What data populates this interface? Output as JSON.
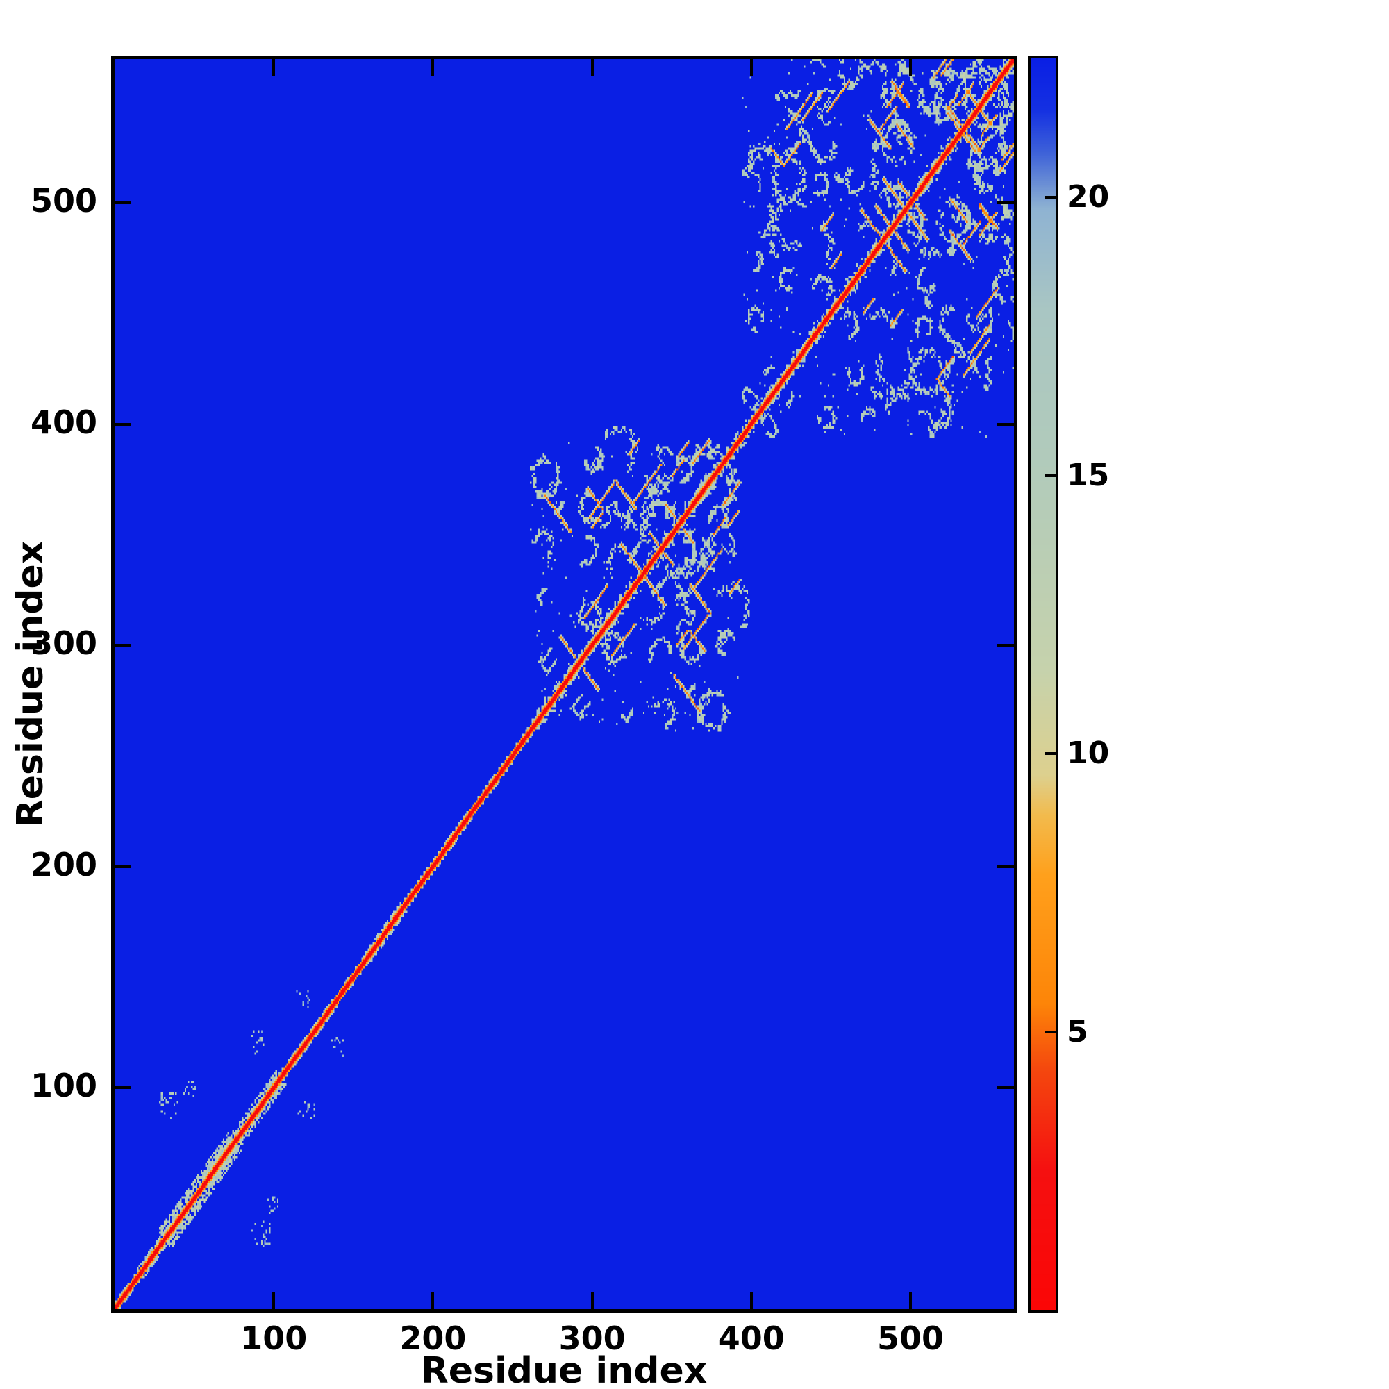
{
  "figure": {
    "background": "#ffffff",
    "frame_color": "#000000"
  },
  "chart_data": {
    "type": "heatmap",
    "title": "",
    "xlabel": "Residue index",
    "ylabel": "Residue index",
    "x_ticks": [
      100,
      200,
      300,
      400,
      500
    ],
    "y_ticks": [
      100,
      200,
      300,
      400,
      500
    ],
    "n_residues": 565,
    "value_range": [
      0,
      22.5
    ],
    "background_value": 22.5,
    "colorbar_ticks": [
      5,
      10,
      15,
      20
    ],
    "legend_position": "right",
    "grid": false,
    "value_meaning": "residue-residue distance, red = near (diagonal), blue = far",
    "colormap_stops": [
      [
        0.0,
        "#fb0606"
      ],
      [
        2.5,
        "#f51010"
      ],
      [
        4.3,
        "#f4470e"
      ],
      [
        5.5,
        "#fd8508"
      ],
      [
        7.8,
        "#ffa01c"
      ],
      [
        8.9,
        "#f2bb4e"
      ],
      [
        9.6,
        "#ddd08e"
      ],
      [
        11.5,
        "#c6d2ac"
      ],
      [
        15.0,
        "#b2cbba"
      ],
      [
        18.0,
        "#a9c6c3"
      ],
      [
        19.8,
        "#8fb3d2"
      ],
      [
        20.8,
        "#3f63d8"
      ],
      [
        21.6,
        "#1430e2"
      ],
      [
        22.5,
        "#0a1fe4"
      ]
    ],
    "diagonal": {
      "core_value": 0.4,
      "near_value": 2.2,
      "second_value": 7.5,
      "fringe_value": 16,
      "seed": 99,
      "widen": [
        [
          14,
          40,
          4
        ],
        [
          28,
          72,
          8
        ],
        [
          60,
          102,
          6
        ],
        [
          110,
          134,
          3
        ],
        [
          155,
          180,
          4
        ],
        [
          198,
          222,
          3
        ],
        [
          228,
          250,
          2
        ]
      ]
    },
    "speckles": [
      [
        34,
        92,
        6,
        26
      ],
      [
        46,
        99,
        4,
        14
      ],
      [
        88,
        120,
        5,
        16
      ],
      [
        118,
        140,
        4,
        10
      ]
    ],
    "clusters": [
      {
        "range": [
          261,
          392
        ],
        "grid_step": 24,
        "ring_r": [
          4,
          10
        ],
        "ring_p": 0.62,
        "seg_n": 15,
        "walks": 26,
        "noise": 140,
        "diag_halo": 5,
        "seed": 1337
      },
      {
        "range": [
          394,
          564
        ],
        "grid_step": 23,
        "ring_r": [
          4,
          11
        ],
        "ring_p": 0.66,
        "seg_n": 24,
        "walks": 40,
        "noise": 260,
        "diag_halo": 5,
        "seed": 4242
      }
    ]
  }
}
